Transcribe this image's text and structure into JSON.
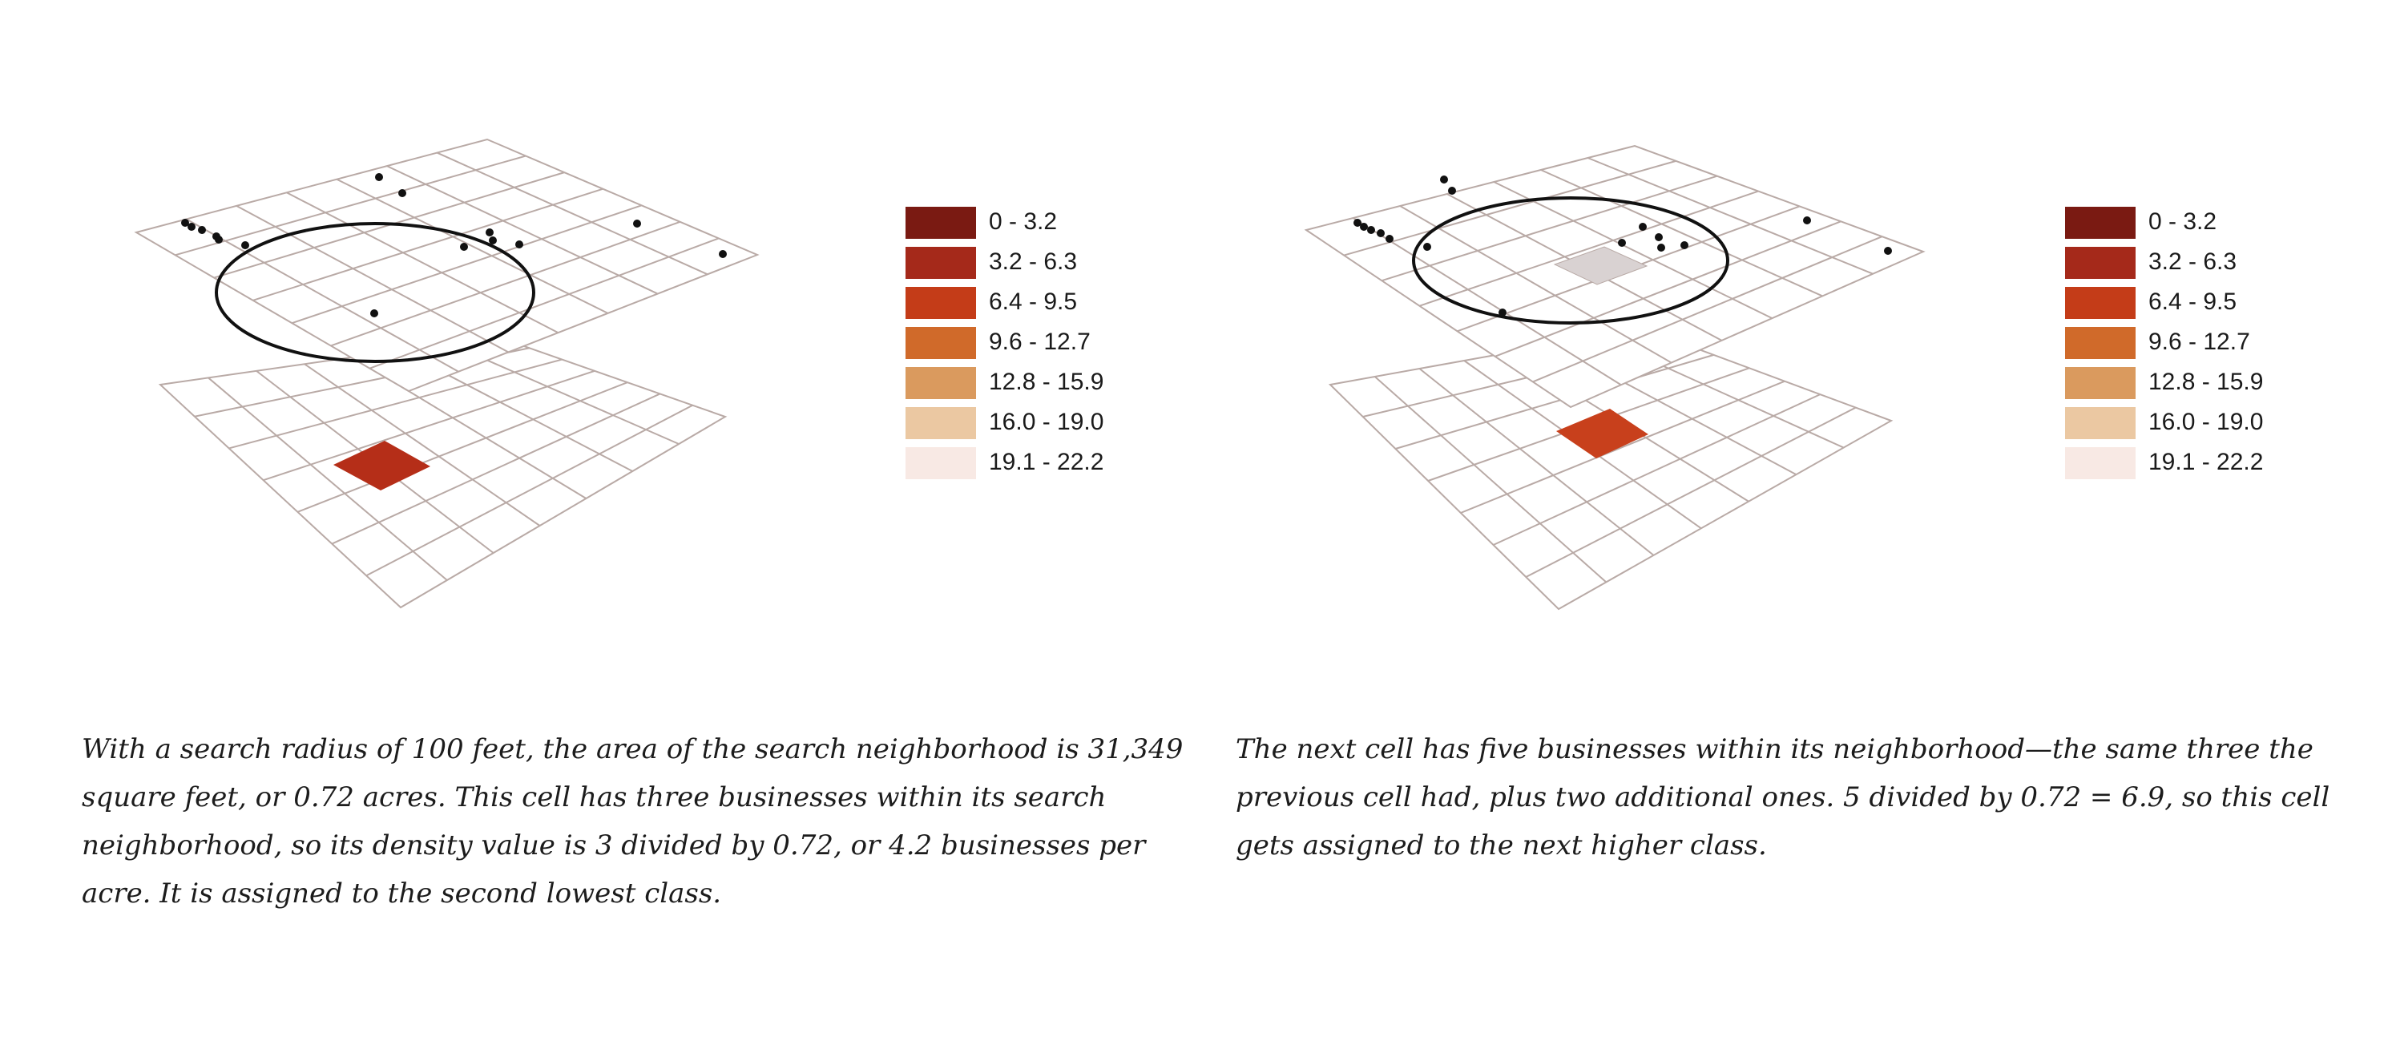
{
  "panels": [
    {
      "id": "left",
      "legend": [
        {
          "label": "0 - 3.2",
          "color": "#7a1a12"
        },
        {
          "label": "3.2 - 6.3",
          "color": "#a5291a"
        },
        {
          "label": "6.4 - 9.5",
          "color": "#c43c18"
        },
        {
          "label": "9.6 - 12.7",
          "color": "#d06a2a"
        },
        {
          "label": "12.8 - 15.9",
          "color": "#da9a5e"
        },
        {
          "label": "16.0 - 19.0",
          "color": "#ebc8a2"
        },
        {
          "label": "19.1 - 22.2",
          "color": "#f8e9e4"
        }
      ],
      "highlight_fill": "#b52e18",
      "upper_cell_fill": "none",
      "caption": "With a search radius of 100 feet, the area of the search neighborhood is 31,349 square feet, or 0.72 acres. This cell has three businesses within its search neighborhood, so its density value is 3 divided by 0.72, or 4.2 businesses per acre. It is assigned to the second lowest class."
    },
    {
      "id": "right",
      "legend": [
        {
          "label": "0 - 3.2",
          "color": "#7a1a12"
        },
        {
          "label": "3.2 - 6.3",
          "color": "#a5291a"
        },
        {
          "label": "6.4 - 9.5",
          "color": "#c43c18"
        },
        {
          "label": "9.6 - 12.7",
          "color": "#d06a2a"
        },
        {
          "label": "12.8 - 15.9",
          "color": "#da9a5e"
        },
        {
          "label": "16.0 - 19.0",
          "color": "#ebc8a2"
        },
        {
          "label": "19.1 - 22.2",
          "color": "#f8e9e4"
        }
      ],
      "highlight_fill": "#c8401c",
      "upper_cell_fill": "#d9d2d2",
      "caption": "The next cell has five businesses within its neighborhood—the same three the previous cell had, plus two additional ones. 5 divided by 0.72 = 6.9, so this cell gets assigned to the next higher class."
    }
  ]
}
